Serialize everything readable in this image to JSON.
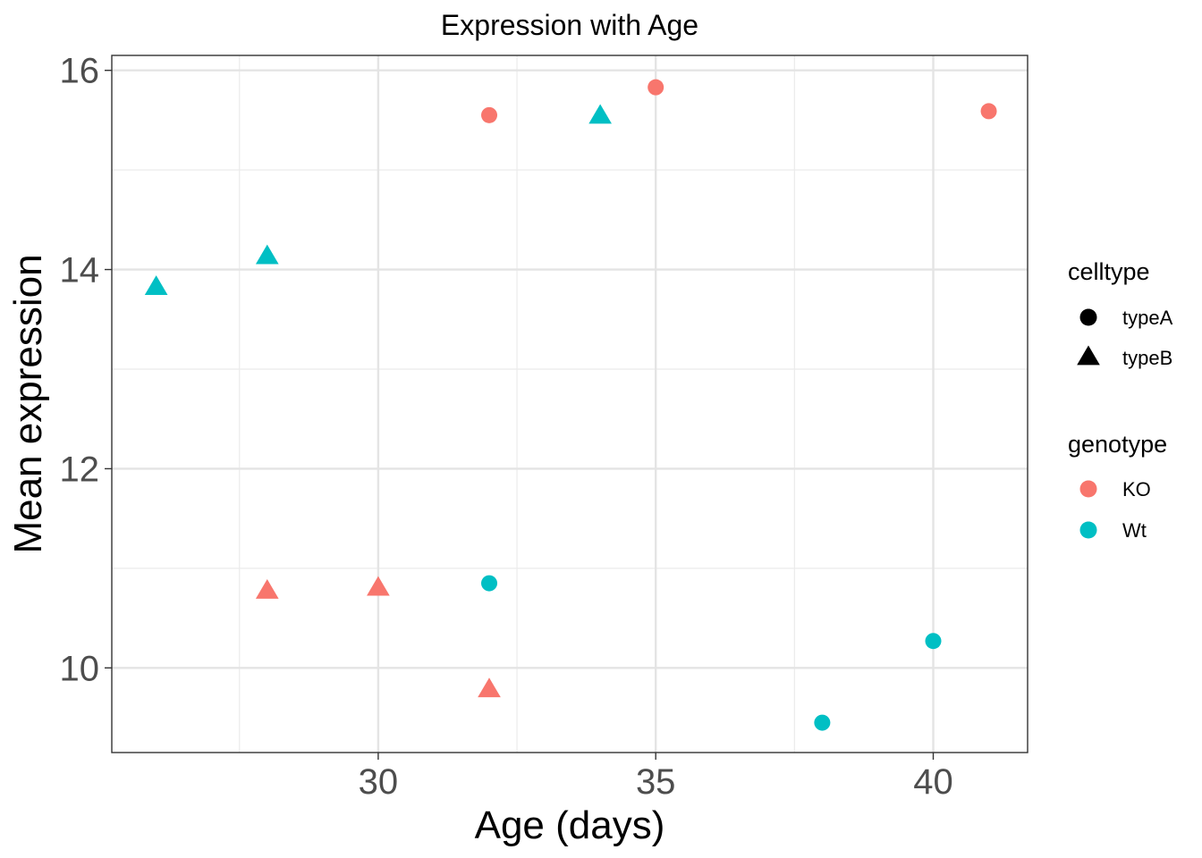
{
  "chart_data": {
    "type": "scatter",
    "title": "Expression with Age",
    "xlabel": "Age (days)",
    "ylabel": "Mean expression",
    "xlim": [
      25.2,
      41.7
    ],
    "ylim": [
      9.15,
      16.15
    ],
    "x_ticks": [
      30,
      35,
      40
    ],
    "y_ticks": [
      10,
      12,
      14,
      16
    ],
    "x_tick_labels": [
      "30",
      "35",
      "40"
    ],
    "y_tick_labels": [
      "10",
      "12",
      "14",
      "16"
    ],
    "grid": true,
    "legend_position": "right",
    "colors": {
      "KO": "#F8766D",
      "Wt": "#00BFC4"
    },
    "legends": [
      {
        "title": "celltype",
        "entries": [
          {
            "label": "typeA",
            "shape": "circle"
          },
          {
            "label": "typeB",
            "shape": "triangle"
          }
        ]
      },
      {
        "title": "genotype",
        "entries": [
          {
            "label": "KO",
            "color": "#F8766D"
          },
          {
            "label": "Wt",
            "color": "#00BFC4"
          }
        ]
      }
    ],
    "points": [
      {
        "x": 26,
        "y": 13.82,
        "celltype": "typeB",
        "genotype": "Wt"
      },
      {
        "x": 28,
        "y": 14.13,
        "celltype": "typeB",
        "genotype": "Wt"
      },
      {
        "x": 28,
        "y": 10.77,
        "celltype": "typeB",
        "genotype": "KO"
      },
      {
        "x": 30,
        "y": 10.8,
        "celltype": "typeB",
        "genotype": "KO"
      },
      {
        "x": 32,
        "y": 15.55,
        "celltype": "typeA",
        "genotype": "KO"
      },
      {
        "x": 32,
        "y": 10.85,
        "celltype": "typeA",
        "genotype": "Wt"
      },
      {
        "x": 32,
        "y": 9.78,
        "celltype": "typeB",
        "genotype": "KO"
      },
      {
        "x": 34,
        "y": 15.54,
        "celltype": "typeB",
        "genotype": "Wt"
      },
      {
        "x": 35,
        "y": 15.83,
        "celltype": "typeA",
        "genotype": "KO"
      },
      {
        "x": 38,
        "y": 9.45,
        "celltype": "typeA",
        "genotype": "Wt"
      },
      {
        "x": 40,
        "y": 10.27,
        "celltype": "typeA",
        "genotype": "Wt"
      },
      {
        "x": 41,
        "y": 15.59,
        "celltype": "typeA",
        "genotype": "KO"
      }
    ]
  }
}
